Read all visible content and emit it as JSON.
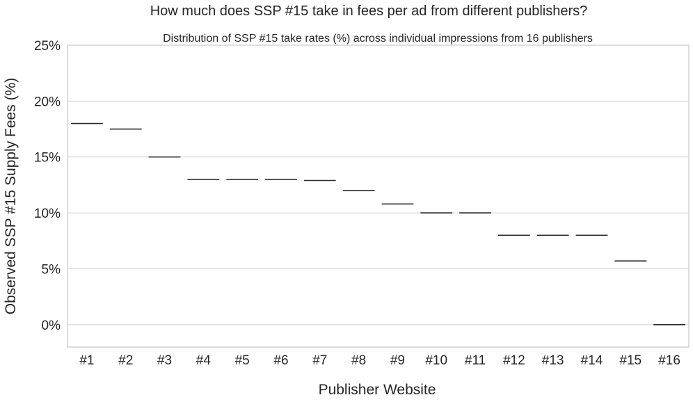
{
  "chart_data": {
    "type": "box",
    "title": "How much does SSP #15 take in fees per ad from different publishers?",
    "subtitle": "Distribution of SSP #15 take rates (%) across individual impressions from 16 publishers",
    "xlabel": "Publisher Website",
    "ylabel": "Observed SSP #15 Supply Fees (%)",
    "categories": [
      "#1",
      "#2",
      "#3",
      "#4",
      "#5",
      "#6",
      "#7",
      "#8",
      "#9",
      "#10",
      "#11",
      "#12",
      "#13",
      "#14",
      "#15",
      "#16"
    ],
    "values": [
      18.0,
      17.5,
      15.0,
      13.0,
      13.0,
      13.0,
      12.9,
      12.0,
      10.8,
      10.0,
      10.0,
      8.0,
      8.0,
      8.0,
      5.7,
      0.0
    ],
    "ylim": [
      -2,
      25
    ],
    "yticks": [
      0,
      5,
      10,
      15,
      20,
      25
    ],
    "ytick_labels": [
      "0%",
      "5%",
      "10%",
      "15%",
      "20%",
      "25%"
    ],
    "grid": "horizontal",
    "colors": {
      "grid": "#d0d0d0",
      "frame": "#c8c8c8",
      "marks": "#2b2b2b"
    }
  }
}
